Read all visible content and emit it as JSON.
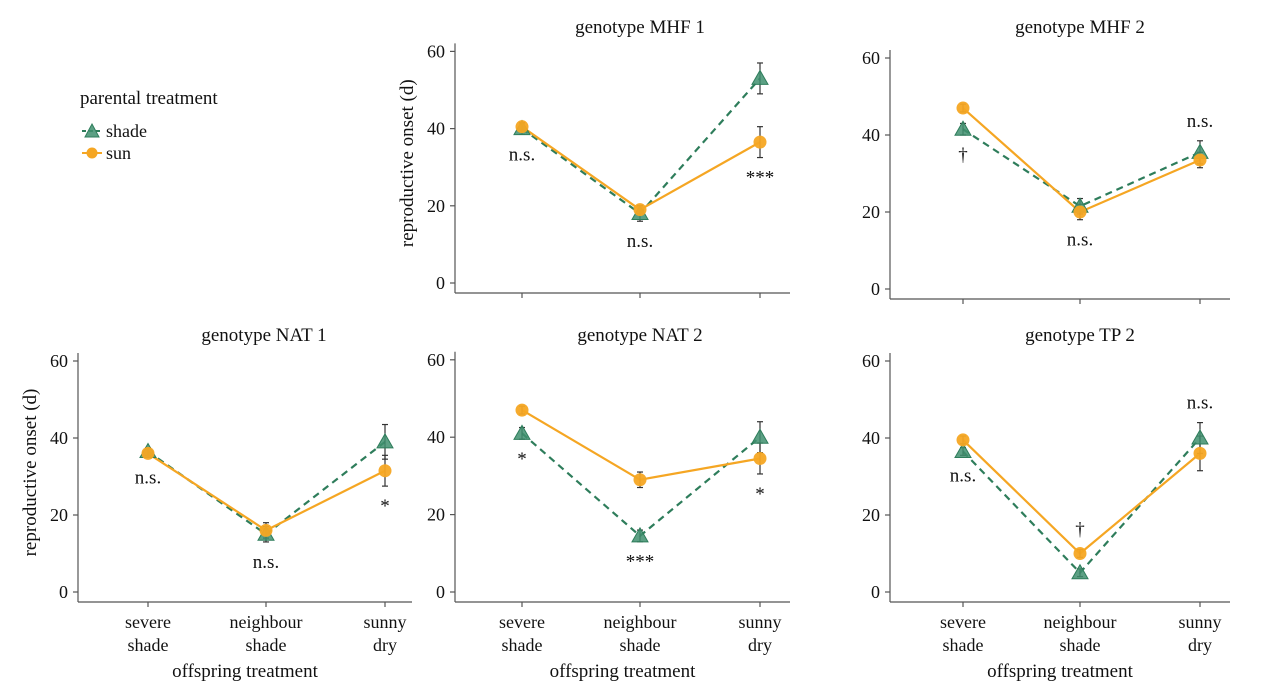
{
  "legend": {
    "title": "parental treatment",
    "items": [
      {
        "label": "shade",
        "color": "#2e7d5b",
        "marker": "triangle",
        "dash": "dashed"
      },
      {
        "label": "sun",
        "color": "#f5a623",
        "marker": "circle",
        "dash": "solid"
      }
    ]
  },
  "chart_data": [
    {
      "type": "line",
      "title": "genotype MHF 1",
      "ylabel": "reproductive onset (d)",
      "xlabel": "",
      "categories": [
        "severe shade",
        "neighbour shade",
        "sunny dry"
      ],
      "show_x_ticks": false,
      "ylim": [
        0,
        60
      ],
      "yticks": [
        0,
        20,
        40,
        60
      ],
      "series": [
        {
          "name": "shade",
          "values": [
            40,
            18,
            53
          ],
          "err": [
            1.5,
            2,
            4
          ]
        },
        {
          "name": "sun",
          "values": [
            40.5,
            19,
            36.5
          ],
          "err": [
            1,
            1,
            4
          ]
        }
      ],
      "annotations": [
        "n.s.",
        "n.s.",
        "***"
      ]
    },
    {
      "type": "line",
      "title": "genotype MHF 2",
      "ylabel": "",
      "xlabel": "",
      "categories": [
        "severe shade",
        "neighbour shade",
        "sunny dry"
      ],
      "show_x_ticks": false,
      "ylim": [
        0,
        60
      ],
      "yticks": [
        0,
        20,
        40,
        60
      ],
      "series": [
        {
          "name": "shade",
          "values": [
            41.5,
            21.5,
            35.5
          ],
          "err": [
            1.5,
            2,
            3
          ]
        },
        {
          "name": "sun",
          "values": [
            47,
            20,
            33.5
          ],
          "err": [
            1,
            2,
            2
          ]
        }
      ],
      "annotations": [
        "†",
        "n.s.",
        "n.s."
      ]
    },
    {
      "type": "line",
      "title": "genotype NAT 1",
      "ylabel": "reproductive onset (d)",
      "xlabel": "offspring treatment",
      "categories": [
        "severe shade",
        "neighbour shade",
        "sunny dry"
      ],
      "show_x_ticks": true,
      "ylim": [
        0,
        60
      ],
      "yticks": [
        0,
        20,
        40,
        60
      ],
      "series": [
        {
          "name": "shade",
          "values": [
            36.5,
            15,
            39
          ],
          "err": [
            1,
            2,
            4.5
          ]
        },
        {
          "name": "sun",
          "values": [
            36,
            16,
            31.5
          ],
          "err": [
            1,
            2,
            4
          ]
        }
      ],
      "annotations": [
        "n.s.",
        "n.s.",
        "*"
      ]
    },
    {
      "type": "line",
      "title": "genotype NAT 2",
      "ylabel": "",
      "xlabel": "offspring treatment",
      "categories": [
        "severe shade",
        "neighbour shade",
        "sunny dry"
      ],
      "show_x_ticks": true,
      "ylim": [
        0,
        60
      ],
      "yticks": [
        0,
        20,
        40,
        60
      ],
      "series": [
        {
          "name": "shade",
          "values": [
            41,
            14.5,
            40
          ],
          "err": [
            1.5,
            1.5,
            4
          ]
        },
        {
          "name": "sun",
          "values": [
            47,
            29,
            34.5
          ],
          "err": [
            1,
            2,
            4
          ]
        }
      ],
      "annotations": [
        "*",
        "***",
        "*"
      ]
    },
    {
      "type": "line",
      "title": "genotype TP 2",
      "ylabel": "",
      "xlabel": "offspring treatment",
      "categories": [
        "severe shade",
        "neighbour shade",
        "sunny dry"
      ],
      "show_x_ticks": true,
      "ylim": [
        0,
        60
      ],
      "yticks": [
        0,
        20,
        40,
        60
      ],
      "series": [
        {
          "name": "shade",
          "values": [
            36.5,
            5,
            40
          ],
          "err": [
            1,
            1,
            4
          ]
        },
        {
          "name": "sun",
          "values": [
            39.5,
            10,
            36
          ],
          "err": [
            1,
            1,
            4.5
          ]
        }
      ],
      "annotations": [
        "n.s.",
        "†",
        "n.s."
      ]
    }
  ]
}
